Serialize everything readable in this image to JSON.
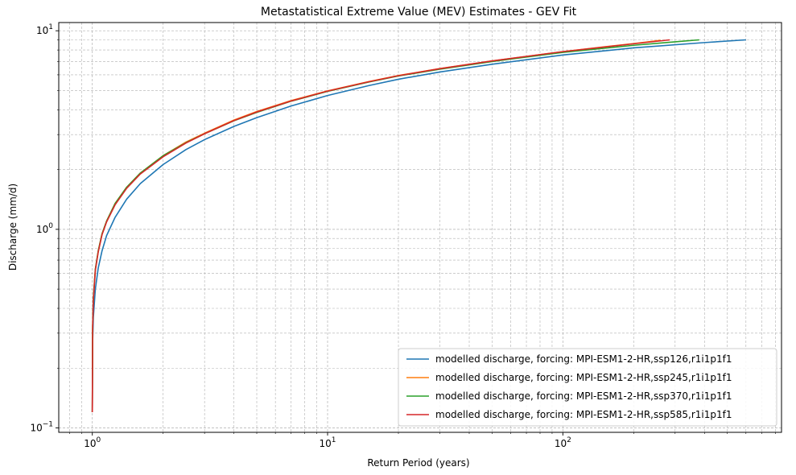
{
  "chart_data": {
    "type": "line",
    "title": "Metastatistical Extreme Value (MEV) Estimates - GEV Fit",
    "xlabel": "Return Period (years)",
    "ylabel": "Discharge (mm/d)",
    "xscale": "log",
    "yscale": "log",
    "xlim": [
      0.72,
      850
    ],
    "ylim": [
      0.095,
      11
    ],
    "grid": true,
    "legend_position": "lower-right",
    "x_ticks": [
      {
        "value": 1,
        "base": "10",
        "exp": "0"
      },
      {
        "value": 10,
        "base": "10",
        "exp": "1"
      },
      {
        "value": 100,
        "base": "10",
        "exp": "2"
      }
    ],
    "y_ticks": [
      {
        "value": 0.1,
        "base": "10",
        "exp": "−1"
      },
      {
        "value": 1,
        "base": "10",
        "exp": "0"
      },
      {
        "value": 10,
        "base": "10",
        "exp": "1"
      }
    ],
    "series": [
      {
        "name": "modelled discharge, forcing: MPI-ESM1-2-HR,ssp126,r1i1p1f1",
        "color": "#1f77b4",
        "x": [
          1.0,
          1.003,
          1.01,
          1.03,
          1.06,
          1.1,
          1.15,
          1.25,
          1.4,
          1.6,
          2.0,
          2.5,
          3.0,
          4.0,
          5.0,
          7.0,
          10.0,
          15.0,
          20.0,
          30.0,
          50.0,
          100.0,
          200.0,
          400.0,
          600.0
        ],
        "y": [
          0.12,
          0.27,
          0.36,
          0.5,
          0.64,
          0.78,
          0.93,
          1.15,
          1.42,
          1.7,
          2.12,
          2.52,
          2.83,
          3.3,
          3.65,
          4.18,
          4.72,
          5.3,
          5.7,
          6.2,
          6.78,
          7.55,
          8.2,
          8.72,
          9.0
        ]
      },
      {
        "name": "modelled discharge, forcing: MPI-ESM1-2-HR,ssp245,r1i1p1f1",
        "color": "#ff7f0e",
        "x": [
          1.0,
          1.003,
          1.01,
          1.03,
          1.06,
          1.1,
          1.15,
          1.25,
          1.4,
          1.6,
          2.0,
          2.5,
          3.0,
          4.0,
          5.0,
          7.0,
          10.0,
          15.0,
          20.0,
          30.0,
          50.0,
          100.0,
          150.0,
          200.0,
          260.0
        ],
        "y": [
          0.12,
          0.32,
          0.45,
          0.63,
          0.78,
          0.95,
          1.1,
          1.35,
          1.63,
          1.92,
          2.35,
          2.75,
          3.05,
          3.55,
          3.92,
          4.45,
          4.98,
          5.55,
          5.95,
          6.45,
          7.05,
          7.85,
          8.3,
          8.62,
          8.95
        ]
      },
      {
        "name": "modelled discharge, forcing: MPI-ESM1-2-HR,ssp370,r1i1p1f1",
        "color": "#2ca02c",
        "x": [
          1.0,
          1.003,
          1.01,
          1.03,
          1.06,
          1.1,
          1.15,
          1.25,
          1.4,
          1.6,
          2.0,
          2.5,
          3.0,
          4.0,
          5.0,
          7.0,
          10.0,
          15.0,
          20.0,
          30.0,
          50.0,
          100.0,
          200.0,
          300.0,
          380.0
        ],
        "y": [
          0.12,
          0.32,
          0.45,
          0.63,
          0.78,
          0.95,
          1.1,
          1.35,
          1.63,
          1.92,
          2.35,
          2.73,
          3.03,
          3.52,
          3.88,
          4.42,
          4.95,
          5.52,
          5.92,
          6.4,
          7.0,
          7.78,
          8.45,
          8.8,
          9.0
        ]
      },
      {
        "name": "modelled discharge, forcing: MPI-ESM1-2-HR,ssp585,r1i1p1f1",
        "color": "#d62728",
        "x": [
          1.0,
          1.003,
          1.01,
          1.03,
          1.06,
          1.1,
          1.15,
          1.25,
          1.4,
          1.6,
          2.0,
          2.5,
          3.0,
          4.0,
          5.0,
          7.0,
          10.0,
          15.0,
          20.0,
          30.0,
          50.0,
          100.0,
          200.0,
          285.0
        ],
        "y": [
          0.12,
          0.31,
          0.44,
          0.62,
          0.77,
          0.94,
          1.09,
          1.33,
          1.61,
          1.9,
          2.32,
          2.72,
          3.03,
          3.53,
          3.9,
          4.43,
          4.97,
          5.54,
          5.94,
          6.44,
          7.05,
          7.85,
          8.6,
          9.0
        ]
      }
    ]
  }
}
